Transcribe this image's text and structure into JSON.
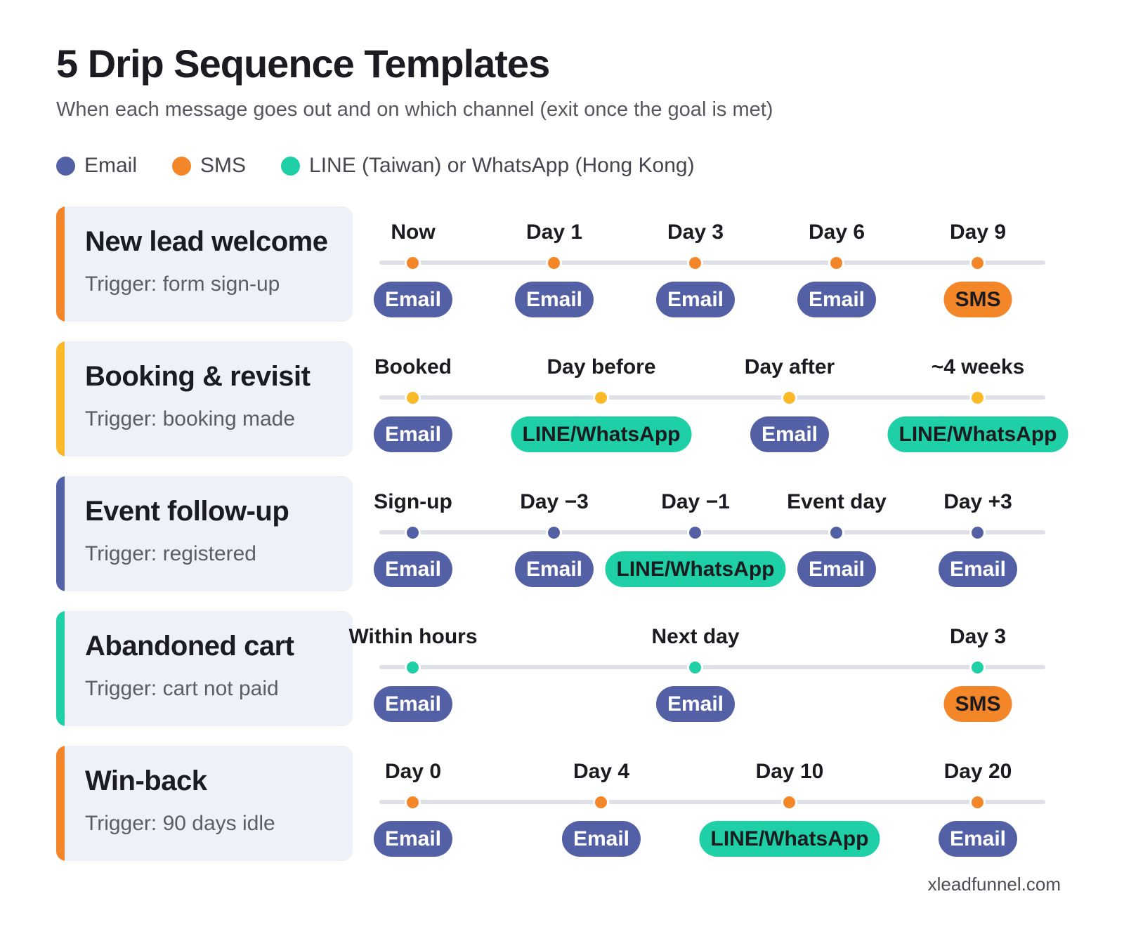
{
  "title": "5 Drip Sequence Templates",
  "subtitle": "When each message goes out and on which channel (exit once the goal is met)",
  "legend": [
    {
      "label": "Email",
      "color": "#5460a6"
    },
    {
      "label": "SMS",
      "color": "#f4862a"
    },
    {
      "label": "LINE (Taiwan) or WhatsApp (Hong Kong)",
      "color": "#1fcfa5"
    }
  ],
  "channel_labels": {
    "email": "Email",
    "sms": "SMS",
    "line": "LINE/WhatsApp"
  },
  "sequences": [
    {
      "name": "New lead welcome",
      "trigger": "Trigger: form sign-up",
      "accent": "#f4862a",
      "steps": [
        {
          "when": "Now",
          "channel": "email"
        },
        {
          "when": "Day 1",
          "channel": "email"
        },
        {
          "when": "Day 3",
          "channel": "email"
        },
        {
          "when": "Day 6",
          "channel": "email"
        },
        {
          "when": "Day 9",
          "channel": "sms"
        }
      ]
    },
    {
      "name": "Booking & revisit",
      "trigger": "Trigger: booking made",
      "accent": "#fbb829",
      "steps": [
        {
          "when": "Booked",
          "channel": "email"
        },
        {
          "when": "Day before",
          "channel": "line"
        },
        {
          "when": "Day after",
          "channel": "email"
        },
        {
          "when": "~4 weeks",
          "channel": "line"
        }
      ]
    },
    {
      "name": "Event follow-up",
      "trigger": "Trigger: registered",
      "accent": "#5460a6",
      "steps": [
        {
          "when": "Sign-up",
          "channel": "email"
        },
        {
          "when": "Day −3",
          "channel": "email"
        },
        {
          "when": "Day −1",
          "channel": "line"
        },
        {
          "when": "Event day",
          "channel": "email"
        },
        {
          "when": "Day +3",
          "channel": "email"
        }
      ]
    },
    {
      "name": "Abandoned cart",
      "trigger": "Trigger: cart not paid",
      "accent": "#1fcfa5",
      "steps": [
        {
          "when": "Within hours",
          "channel": "email"
        },
        {
          "when": "Next day",
          "channel": "email"
        },
        {
          "when": "Day 3",
          "channel": "sms"
        }
      ]
    },
    {
      "name": "Win-back",
      "trigger": "Trigger: 90 days idle",
      "accent": "#f4862a",
      "steps": [
        {
          "when": "Day 0",
          "channel": "email"
        },
        {
          "when": "Day 4",
          "channel": "email"
        },
        {
          "when": "Day 10",
          "channel": "line"
        },
        {
          "when": "Day 20",
          "channel": "email"
        }
      ]
    }
  ],
  "footer": "xleadfunnel.com"
}
